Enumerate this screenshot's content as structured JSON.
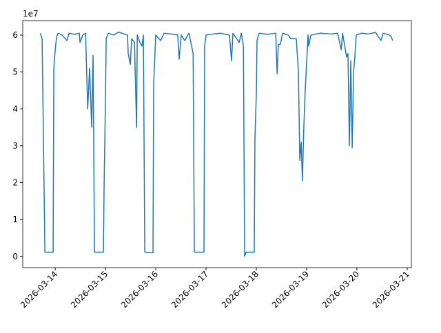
{
  "chart_data": {
    "type": "line",
    "offset_text": "1e7",
    "x": [
      "2026-03-13 16:50",
      "2026-03-13 17:45",
      "2026-03-13 19:05",
      "2026-03-13 23:00",
      "2026-03-13 23:20",
      "2026-03-14 00:00",
      "2026-03-14 00:40",
      "2026-03-14 01:20",
      "2026-03-14 03:20",
      "2026-03-14 05:35",
      "2026-03-14 06:35",
      "2026-03-14 09:10",
      "2026-03-14 11:30",
      "2026-03-14 11:50",
      "2026-03-14 13:10",
      "2026-03-14 14:30",
      "2026-03-14 15:30",
      "2026-03-14 16:25",
      "2026-03-14 17:25",
      "2026-03-14 18:05",
      "2026-03-14 18:45",
      "2026-03-14 23:00",
      "2026-03-14 23:20",
      "2026-03-15 00:00",
      "2026-03-15 00:20",
      "2026-03-15 01:20",
      "2026-03-15 03:55",
      "2026-03-15 06:15",
      "2026-03-15 08:50",
      "2026-03-15 10:30",
      "2026-03-15 10:50",
      "2026-03-15 11:50",
      "2026-03-15 12:30",
      "2026-03-15 13:50",
      "2026-03-15 14:50",
      "2026-03-15 15:10",
      "2026-03-15 16:25",
      "2026-03-15 17:25",
      "2026-03-15 18:05",
      "2026-03-15 18:45",
      "2026-03-15 22:40",
      "2026-03-15 23:00",
      "2026-03-16 00:00",
      "2026-03-16 02:20",
      "2026-03-16 04:00",
      "2026-03-16 07:15",
      "2026-03-16 10:30",
      "2026-03-16 11:10",
      "2026-03-16 12:10",
      "2026-03-16 13:50",
      "2026-03-16 15:50",
      "2026-03-16 17:50",
      "2026-03-16 18:25",
      "2026-03-16 23:00",
      "2026-03-16 23:20",
      "2026-03-17 00:00",
      "2026-03-17 03:35",
      "2026-03-17 06:55",
      "2026-03-17 11:10",
      "2026-03-17 12:10",
      "2026-03-17 12:50",
      "2026-03-17 15:50",
      "2026-03-17 16:50",
      "2026-03-17 17:50",
      "2026-03-17 18:25",
      "2026-03-17 19:05",
      "2026-03-17 23:00",
      "2026-03-17 23:20",
      "2026-03-18 00:00",
      "2026-03-18 00:20",
      "2026-03-18 01:20",
      "2026-03-18 05:15",
      "2026-03-18 09:15",
      "2026-03-18 09:55",
      "2026-03-18 10:30",
      "2026-03-18 11:30",
      "2026-03-18 12:30",
      "2026-03-18 15:10",
      "2026-03-18 16:30",
      "2026-03-18 19:05",
      "2026-03-18 20:05",
      "2026-03-18 20:45",
      "2026-03-18 21:25",
      "2026-03-18 22:00",
      "2026-03-18 22:40",
      "2026-03-18 23:20",
      "2026-03-19 00:40",
      "2026-03-19 01:00",
      "2026-03-19 02:00",
      "2026-03-19 06:35",
      "2026-03-19 11:30",
      "2026-03-19 14:50",
      "2026-03-19 16:30",
      "2026-03-19 17:10",
      "2026-03-19 19:05",
      "2026-03-19 19:45",
      "2026-03-19 20:25",
      "2026-03-19 21:05",
      "2026-03-19 21:45",
      "2026-03-19 22:25",
      "2026-03-19 23:00",
      "2026-03-19 23:40",
      "2026-03-20 02:20",
      "2026-03-20 05:35",
      "2026-03-20 08:55",
      "2026-03-20 11:30",
      "2026-03-20 12:30",
      "2026-03-20 15:30",
      "2026-03-20 16:25",
      "2026-03-20 17:05"
    ],
    "series": [
      {
        "color": "#1f77b4",
        "values": [
          60500000,
          59000000,
          1200000,
          1200000,
          51000000,
          56000000,
          59500000,
          60500000,
          60000000,
          58500000,
          60500000,
          60200000,
          60500000,
          58000000,
          60000000,
          60500000,
          40000000,
          51000000,
          35000000,
          54500000,
          1200000,
          1200000,
          19000000,
          43000000,
          59000000,
          60500000,
          60000000,
          60800000,
          60300000,
          60000000,
          55000000,
          52000000,
          59000000,
          58000000,
          35000000,
          60000000,
          58000000,
          57000000,
          60000000,
          1200000,
          1000000,
          47000000,
          60000000,
          58500000,
          60500000,
          60300000,
          60000000,
          53500000,
          60000000,
          58500000,
          60500000,
          55000000,
          1200000,
          1200000,
          57000000,
          60000000,
          60300000,
          60500000,
          60000000,
          53000000,
          60500000,
          58000000,
          60500000,
          57000000,
          100000,
          1200000,
          1200000,
          32000000,
          44000000,
          58500000,
          60500000,
          60200000,
          60500000,
          49500000,
          57500000,
          57500000,
          60500000,
          60000000,
          59000000,
          59000000,
          50000000,
          26000000,
          31000000,
          20500000,
          35000000,
          45000000,
          60000000,
          57000000,
          60000000,
          60500000,
          60300000,
          60500000,
          56000000,
          60500000,
          54000000,
          55000000,
          30000000,
          53000000,
          29500000,
          50000000,
          54000000,
          60000000,
          60500000,
          60300000,
          60700000,
          58500000,
          60500000,
          60000000,
          59500000,
          58500000
        ]
      }
    ],
    "xlim": [
      "2026-03-13 08:30",
      "2026-03-21 02:00"
    ],
    "xticks": [
      "2026-03-14",
      "2026-03-15",
      "2026-03-16",
      "2026-03-17",
      "2026-03-18",
      "2026-03-19",
      "2026-03-20",
      "2026-03-21"
    ],
    "ylim": [
      -3000000,
      63900000
    ],
    "yticks": [
      0,
      {
        "value": 10000000,
        "label": "1"
      },
      {
        "value": 20000000,
        "label": "2"
      },
      {
        "value": 30000000,
        "label": "3"
      },
      {
        "value": 40000000,
        "label": "4"
      },
      {
        "value": 50000000,
        "label": "5"
      },
      {
        "value": 60000000,
        "label": "6"
      }
    ]
  }
}
